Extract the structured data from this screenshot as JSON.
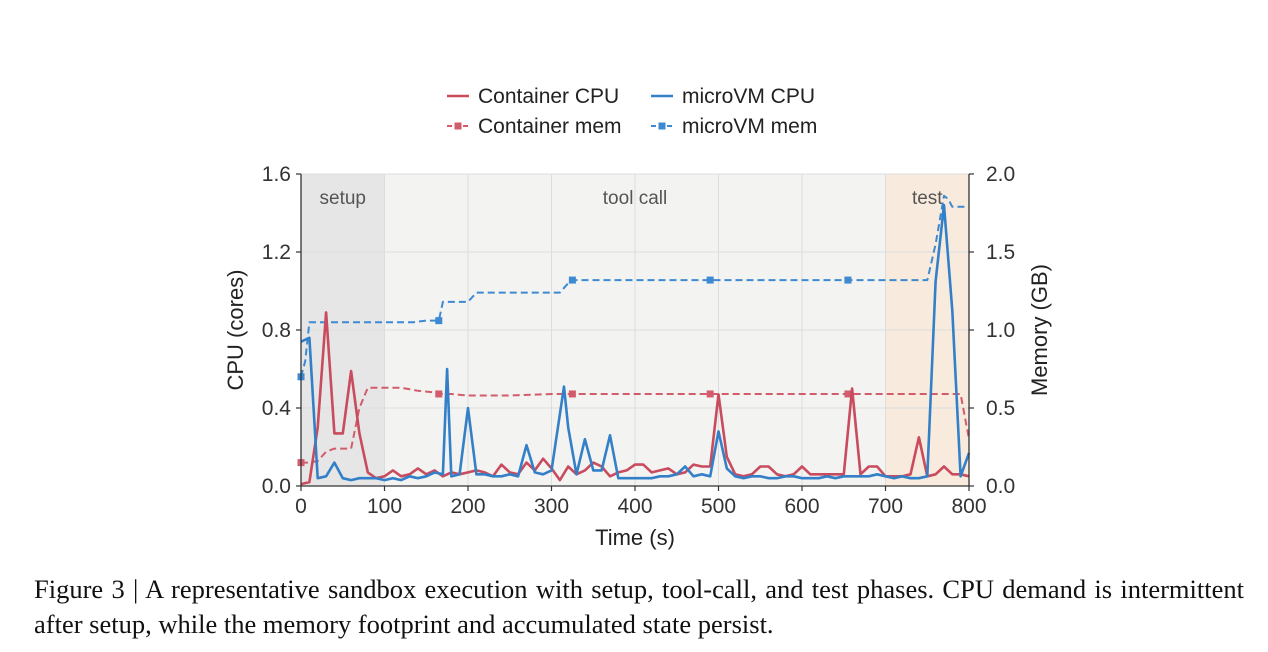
{
  "chart_data": {
    "type": "line",
    "x_range": [
      0,
      800
    ],
    "ylim_left": [
      0,
      1.6
    ],
    "ylim_right": [
      0,
      2.0
    ],
    "xlabel": "Time (s)",
    "ylabel_left": "CPU (cores)",
    "ylabel_right": "Memory (GB)",
    "x_ticks": [
      "0",
      "100",
      "200",
      "300",
      "400",
      "500",
      "600",
      "700",
      "800"
    ],
    "y_ticks_left": [
      "0.0",
      "0.4",
      "0.8",
      "1.2",
      "1.6"
    ],
    "y_ticks_right": [
      "0.0",
      "0.5",
      "1.0",
      "1.5",
      "2.0"
    ],
    "grid": true,
    "legend_position": "top-center",
    "phases": [
      {
        "label": "setup",
        "start": 0,
        "end": 100,
        "color": "#e6e6e6"
      },
      {
        "label": "tool call",
        "start": 100,
        "end": 700,
        "color": "#f3f3f1"
      },
      {
        "label": "test",
        "start": 700,
        "end": 800,
        "color": "#f8ebde"
      }
    ],
    "series": [
      {
        "name": "Container CPU",
        "axis": "left",
        "color": "#c94b5e",
        "dashed": false,
        "marker": false,
        "x": [
          0,
          10,
          20,
          30,
          40,
          50,
          60,
          70,
          80,
          90,
          100,
          110,
          120,
          130,
          140,
          150,
          160,
          170,
          180,
          190,
          200,
          210,
          220,
          230,
          240,
          250,
          260,
          270,
          280,
          290,
          300,
          310,
          320,
          330,
          340,
          350,
          360,
          370,
          380,
          390,
          400,
          410,
          420,
          430,
          440,
          450,
          460,
          470,
          480,
          490,
          500,
          510,
          520,
          530,
          540,
          550,
          560,
          570,
          580,
          590,
          600,
          610,
          620,
          630,
          640,
          650,
          660,
          670,
          680,
          690,
          700,
          710,
          720,
          730,
          740,
          750,
          760,
          770,
          780,
          790,
          800
        ],
        "y": [
          0.01,
          0.02,
          0.3,
          0.89,
          0.27,
          0.27,
          0.59,
          0.27,
          0.07,
          0.04,
          0.05,
          0.08,
          0.05,
          0.06,
          0.09,
          0.06,
          0.08,
          0.05,
          0.07,
          0.06,
          0.07,
          0.08,
          0.07,
          0.05,
          0.11,
          0.07,
          0.06,
          0.12,
          0.08,
          0.14,
          0.09,
          0.03,
          0.1,
          0.06,
          0.08,
          0.12,
          0.1,
          0.05,
          0.07,
          0.08,
          0.11,
          0.11,
          0.07,
          0.08,
          0.09,
          0.06,
          0.07,
          0.11,
          0.1,
          0.1,
          0.47,
          0.15,
          0.06,
          0.05,
          0.06,
          0.1,
          0.1,
          0.06,
          0.05,
          0.06,
          0.1,
          0.06,
          0.06,
          0.06,
          0.06,
          0.06,
          0.5,
          0.06,
          0.1,
          0.1,
          0.05,
          0.05,
          0.05,
          0.06,
          0.25,
          0.05,
          0.06,
          0.1,
          0.06,
          0.06,
          0.05
        ]
      },
      {
        "name": "microVM CPU",
        "axis": "left",
        "color": "#3380c8",
        "dashed": false,
        "marker": false,
        "x": [
          0,
          10,
          20,
          30,
          40,
          50,
          60,
          70,
          80,
          90,
          100,
          110,
          120,
          130,
          140,
          150,
          160,
          170,
          175,
          180,
          190,
          200,
          210,
          220,
          230,
          240,
          250,
          260,
          270,
          280,
          290,
          300,
          315,
          320,
          330,
          340,
          350,
          360,
          370,
          380,
          390,
          400,
          410,
          420,
          430,
          440,
          450,
          460,
          470,
          480,
          490,
          500,
          510,
          520,
          530,
          540,
          550,
          560,
          570,
          580,
          590,
          600,
          610,
          620,
          630,
          640,
          650,
          660,
          670,
          680,
          690,
          700,
          710,
          720,
          730,
          740,
          750,
          760,
          770,
          780,
          790,
          800
        ],
        "y": [
          0.74,
          0.76,
          0.04,
          0.05,
          0.12,
          0.04,
          0.03,
          0.04,
          0.04,
          0.04,
          0.03,
          0.04,
          0.03,
          0.05,
          0.04,
          0.05,
          0.07,
          0.06,
          0.6,
          0.05,
          0.06,
          0.4,
          0.06,
          0.06,
          0.05,
          0.05,
          0.06,
          0.05,
          0.21,
          0.07,
          0.06,
          0.08,
          0.51,
          0.3,
          0.06,
          0.24,
          0.08,
          0.08,
          0.26,
          0.04,
          0.04,
          0.04,
          0.04,
          0.04,
          0.05,
          0.05,
          0.06,
          0.1,
          0.05,
          0.06,
          0.05,
          0.28,
          0.09,
          0.05,
          0.04,
          0.05,
          0.05,
          0.04,
          0.04,
          0.05,
          0.05,
          0.04,
          0.04,
          0.04,
          0.05,
          0.04,
          0.05,
          0.05,
          0.05,
          0.05,
          0.06,
          0.05,
          0.04,
          0.05,
          0.04,
          0.04,
          0.05,
          1.05,
          1.44,
          0.9,
          0.05,
          0.17
        ]
      },
      {
        "name": "Container mem",
        "axis": "right",
        "color": "#d25c6c",
        "dashed": true,
        "marker": true,
        "marker_x": [
          0,
          165,
          325,
          490,
          655
        ],
        "x": [
          0,
          10,
          20,
          30,
          40,
          50,
          60,
          70,
          80,
          90,
          100,
          120,
          140,
          160,
          165,
          180,
          200,
          250,
          300,
          325,
          350,
          400,
          450,
          490,
          500,
          550,
          600,
          650,
          655,
          700,
          750,
          790,
          800
        ],
        "y": [
          0.15,
          0.15,
          0.16,
          0.22,
          0.24,
          0.24,
          0.24,
          0.5,
          0.63,
          0.63,
          0.63,
          0.63,
          0.61,
          0.6,
          0.59,
          0.59,
          0.58,
          0.58,
          0.59,
          0.59,
          0.59,
          0.59,
          0.59,
          0.59,
          0.59,
          0.59,
          0.59,
          0.59,
          0.59,
          0.59,
          0.59,
          0.59,
          0.3
        ]
      },
      {
        "name": "microVM mem",
        "axis": "right",
        "color": "#3d8ad3",
        "dashed": true,
        "marker": true,
        "marker_x": [
          0,
          165,
          325,
          490,
          655
        ],
        "x": [
          0,
          5,
          10,
          20,
          60,
          100,
          135,
          150,
          165,
          170,
          180,
          200,
          210,
          250,
          300,
          310,
          320,
          325,
          330,
          400,
          450,
          490,
          500,
          550,
          600,
          650,
          655,
          700,
          750,
          760,
          770,
          775,
          780,
          790,
          800
        ],
        "y": [
          0.7,
          0.8,
          1.05,
          1.05,
          1.05,
          1.05,
          1.05,
          1.06,
          1.06,
          1.18,
          1.18,
          1.18,
          1.24,
          1.24,
          1.24,
          1.24,
          1.3,
          1.32,
          1.32,
          1.32,
          1.32,
          1.32,
          1.32,
          1.32,
          1.32,
          1.32,
          1.32,
          1.32,
          1.32,
          1.55,
          1.86,
          1.84,
          1.79,
          1.79,
          1.79
        ]
      }
    ]
  },
  "caption": "Figure 3 | A representative sandbox execution with setup, tool-call, and test phases. CPU demand is intermittent after setup, while the memory footprint and accumulated state persist."
}
